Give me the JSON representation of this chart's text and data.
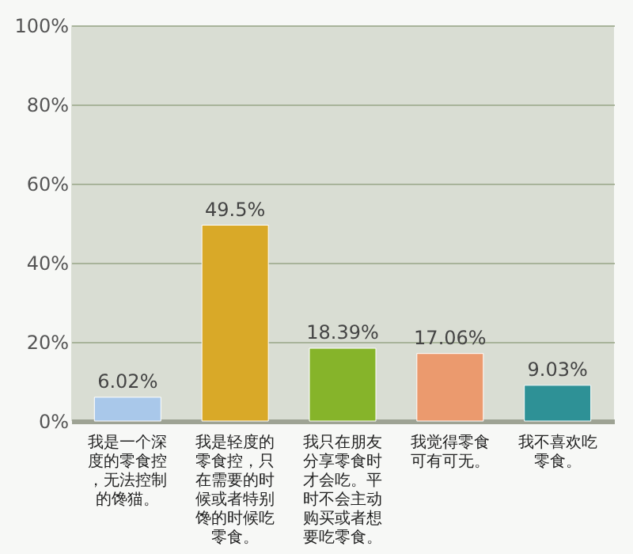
{
  "chart_data": {
    "type": "bar",
    "categories": [
      "我是一个深度的零食控，无法控制的馋猫。",
      "我是轻度的零食控，只在需要的时候或者特别馋的时候吃零食。",
      "我只在朋友分享零食时才会吃。平时不会主动购买或者想要吃零食。",
      "我觉得零食可有可无。",
      "我不喜欢吃零食。"
    ],
    "values": [
      6.02,
      49.5,
      18.39,
      17.06,
      9.03
    ],
    "colors": [
      "#a9c8ea",
      "#d9a928",
      "#86b42a",
      "#eb9a6e",
      "#2e9196"
    ],
    "value_labels": [
      "6.02%",
      "49.5%",
      "18.39%",
      "17.06%",
      "9.03%"
    ],
    "ylim": [
      0,
      100
    ],
    "yticks": [
      {
        "value": 0,
        "label": "0%"
      },
      {
        "value": 20,
        "label": "20%"
      },
      {
        "value": 40,
        "label": "40%"
      },
      {
        "value": 60,
        "label": "60%"
      },
      {
        "value": 80,
        "label": "80%"
      },
      {
        "value": 100,
        "label": "100%"
      }
    ],
    "grid": "y"
  }
}
